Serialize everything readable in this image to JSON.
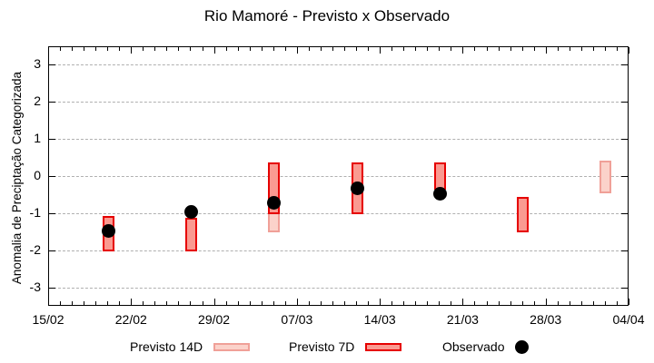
{
  "title": "Rio Mamoré - Previsto x Observado",
  "y_axis": {
    "label": "Anomalia de Preciptação Categorizada",
    "tick_values": [
      3,
      2,
      1,
      0,
      -1,
      -2,
      -3
    ],
    "tick_labels": [
      "3",
      "2",
      "1",
      "0",
      "-1",
      "-2",
      "-3"
    ],
    "min": -3.5,
    "max": 3.5,
    "grid": "dashed"
  },
  "x_axis": {
    "tick_labels": [
      "15/02",
      "22/02",
      "29/02",
      "07/03",
      "14/03",
      "21/03",
      "28/03",
      "04/04"
    ],
    "major_tick_days": [
      0,
      7,
      14,
      21,
      28,
      35,
      42,
      49
    ],
    "minor_tick_interval_days": 1,
    "total_days": 49
  },
  "colors": {
    "previsto_14d_fill": "#fbd2ca",
    "previsto_14d_border": "#f0a098",
    "previsto_7d_fill": "#fa9a91",
    "previsto_7d_border": "#e60000",
    "observado": "#000000",
    "grid": "#b0b0b0",
    "axis": "#000000"
  },
  "legend": {
    "items": [
      {
        "label": "Previsto 14D",
        "type": "box",
        "fill": "#fbd2ca",
        "border": "#f0a098"
      },
      {
        "label": "Previsto 7D",
        "type": "box",
        "fill": "#fa9a91",
        "border": "#e60000"
      },
      {
        "label": "Observado",
        "type": "dot",
        "fill": "#000000"
      }
    ],
    "position": "bottom"
  },
  "chart_data": {
    "type": "bar",
    "title": "Rio Mamoré - Previsto x Observado",
    "xlabel": "",
    "ylabel": "Anomalia de Preciptação Categorizada",
    "ylim": [
      -3.5,
      3.5
    ],
    "x_range_labels": [
      "15/02",
      "04/04"
    ],
    "legend_position": "bottom",
    "grid": "horizontal-dashed",
    "series": [
      {
        "name": "Previsto 14D",
        "style": "range-bar",
        "points": [
          {
            "date": "05/03",
            "day": 19,
            "high": 0.4,
            "low": -1.5
          },
          {
            "date": "02/04",
            "day": 47,
            "high": 0.45,
            "low": -0.45
          }
        ]
      },
      {
        "name": "Previsto 7D",
        "style": "range-bar",
        "points": [
          {
            "date": "20/02",
            "day": 5,
            "high": -1.05,
            "low": -2.0
          },
          {
            "date": "27/02",
            "day": 12,
            "high": -1.1,
            "low": -2.0
          },
          {
            "date": "05/03",
            "day": 19,
            "high": 0.4,
            "low": -1.0
          },
          {
            "date": "12/03",
            "day": 26,
            "high": 0.4,
            "low": -1.0
          },
          {
            "date": "19/03",
            "day": 33,
            "high": 0.4,
            "low": -0.35
          },
          {
            "date": "26/03",
            "day": 40,
            "high": -0.55,
            "low": -1.5
          }
        ]
      },
      {
        "name": "Observado",
        "style": "dot",
        "points": [
          {
            "date": "20/02",
            "day": 5,
            "value": -1.45
          },
          {
            "date": "27/02",
            "day": 12,
            "value": -0.95
          },
          {
            "date": "05/03",
            "day": 19,
            "value": -0.7
          },
          {
            "date": "12/03",
            "day": 26,
            "value": -0.3
          },
          {
            "date": "19/03",
            "day": 33,
            "value": -0.45
          }
        ]
      }
    ]
  }
}
